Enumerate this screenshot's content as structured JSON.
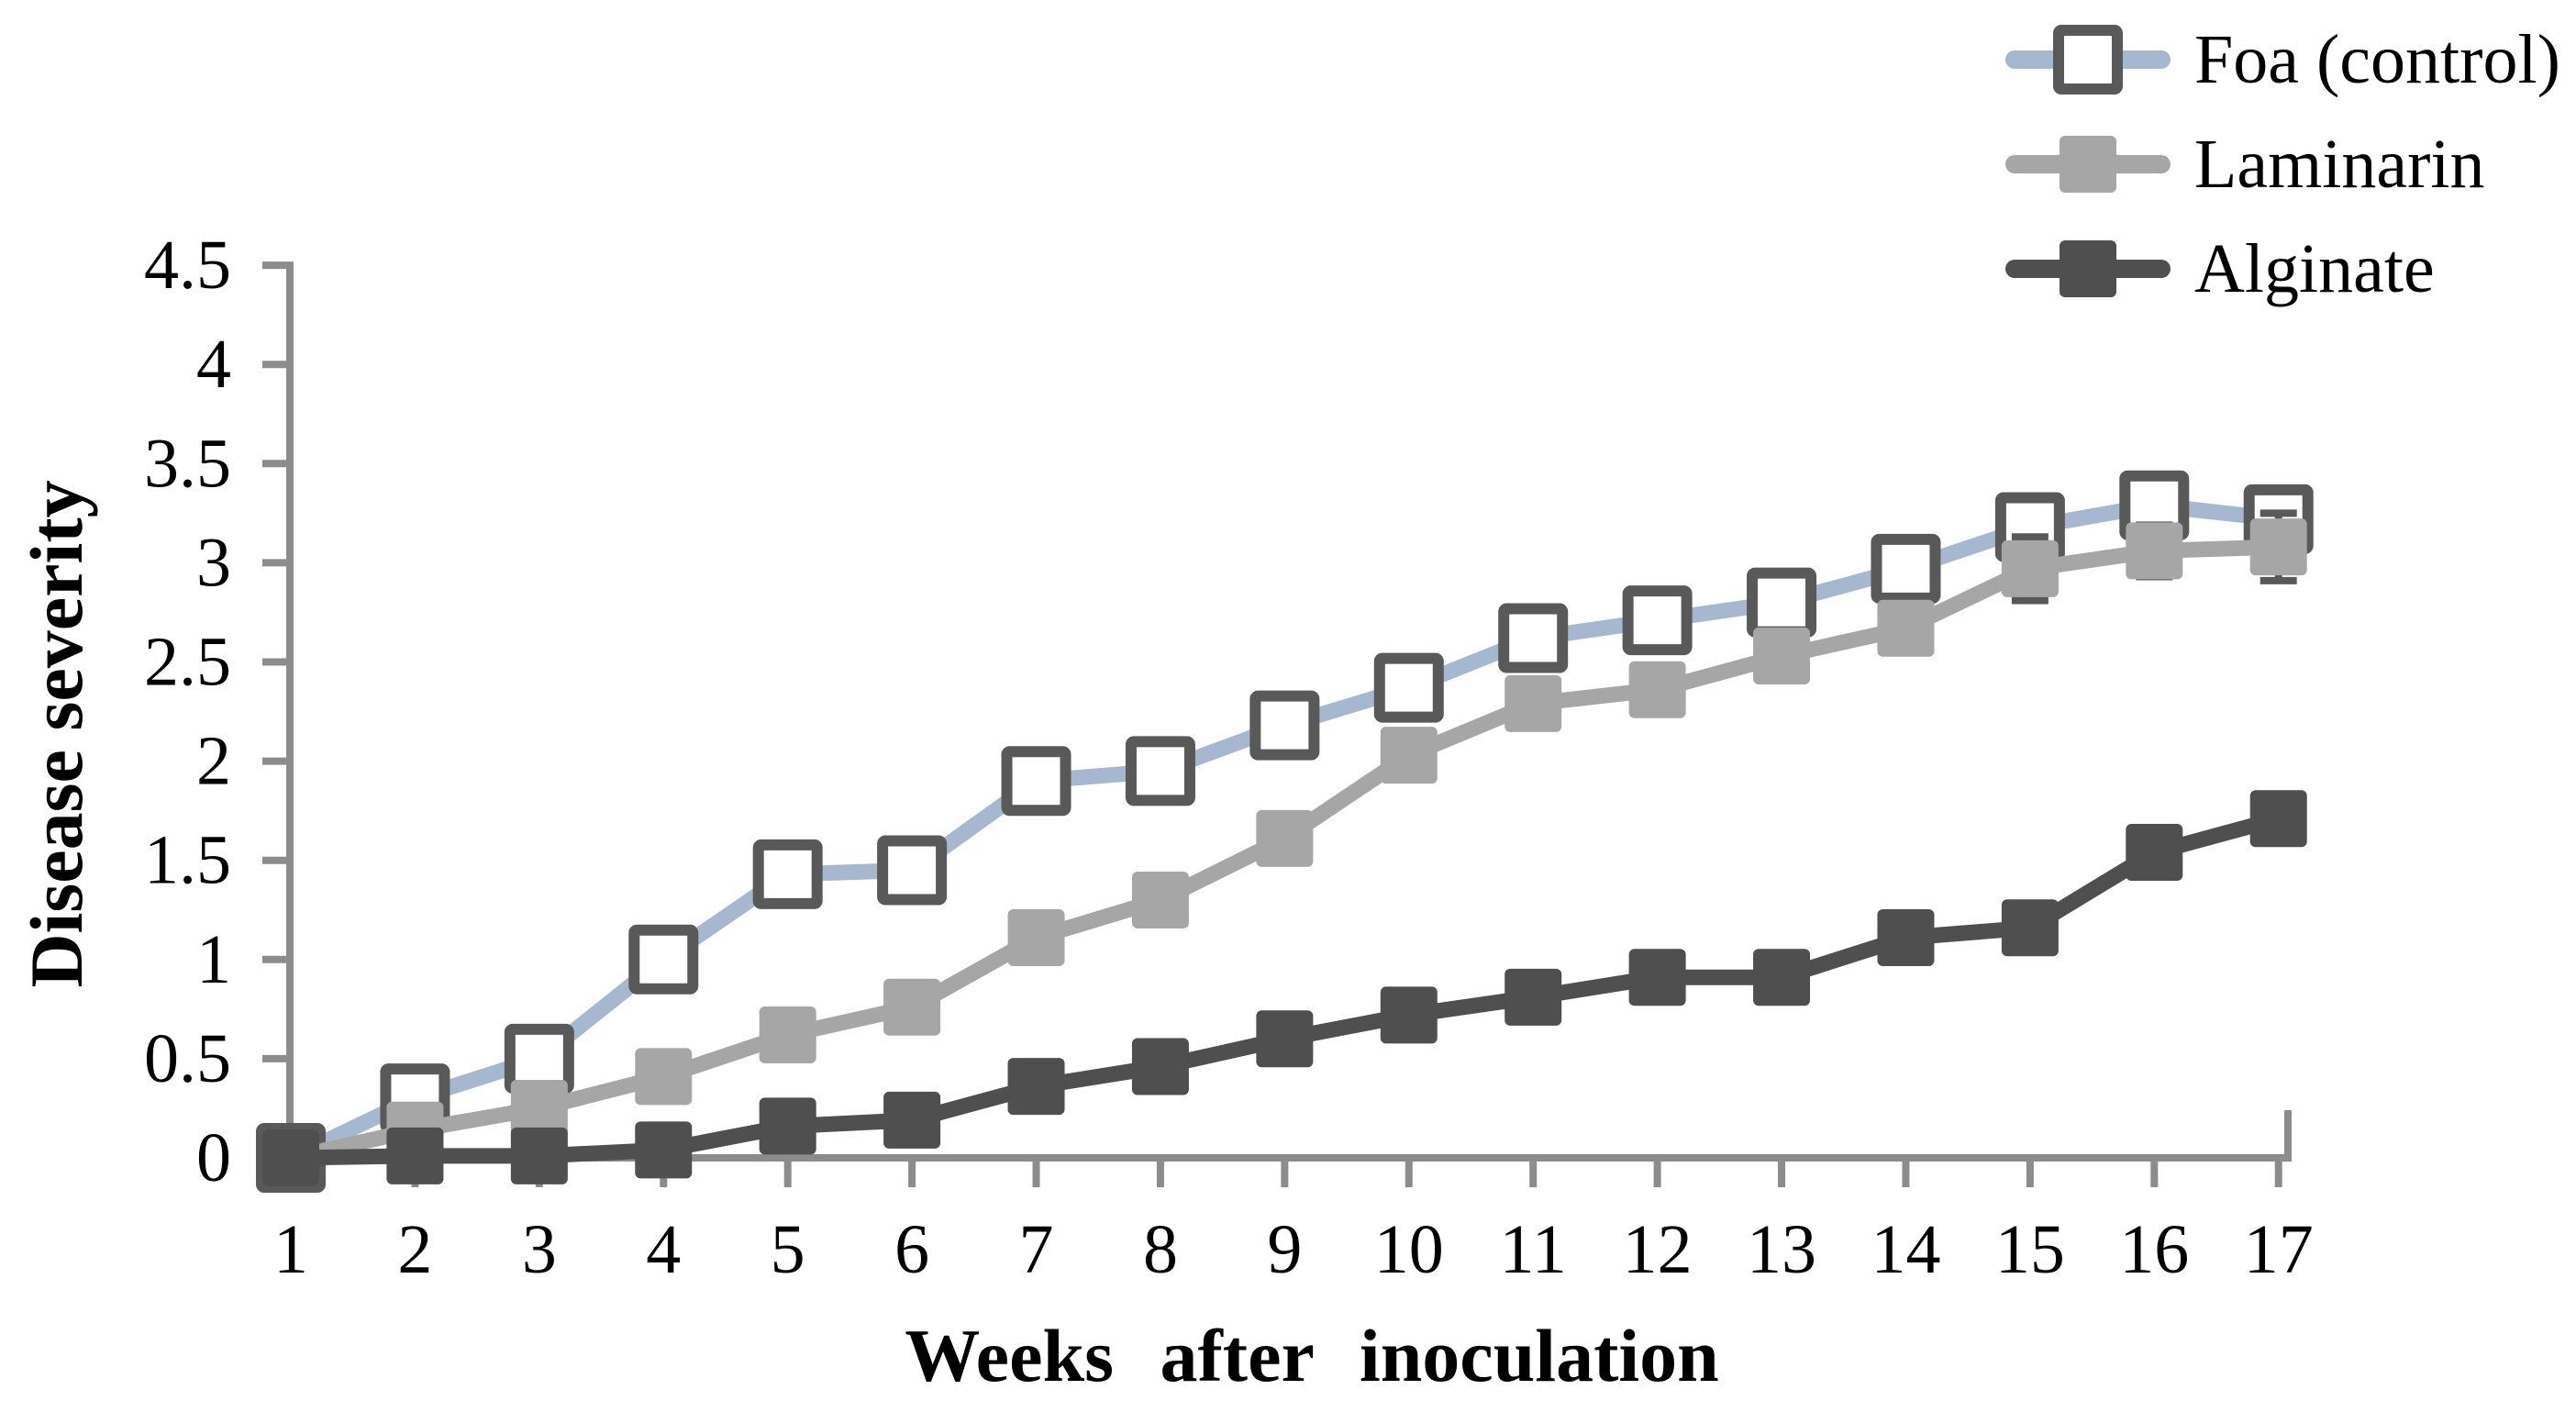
{
  "figure": {
    "background": "#ffffff",
    "y_axis_title": "Disease severity",
    "x_axis_title": "Weeks after inoculation"
  },
  "chart_data": {
    "type": "line",
    "title": "",
    "xlabel": "Weeks after inoculation",
    "ylabel": "Disease severity",
    "x": [
      1,
      2,
      3,
      4,
      5,
      6,
      7,
      8,
      9,
      10,
      11,
      12,
      13,
      14,
      15,
      16,
      17
    ],
    "x_ticklabels": [
      "1",
      "2",
      "3",
      "4",
      "5",
      "6",
      "7",
      "8",
      "9",
      "10",
      "11",
      "12",
      "13",
      "14",
      "15",
      "16",
      "17"
    ],
    "y_ticks": [
      0,
      0.5,
      1,
      1.5,
      2,
      2.5,
      3,
      3.5,
      4,
      4.5
    ],
    "y_ticklabels": [
      "0",
      "0.5",
      "1",
      "1.5",
      "2",
      "2.5",
      "3",
      "3.5",
      "4",
      "4.5"
    ],
    "ylim": [
      0,
      4.5
    ],
    "grid": false,
    "legend_position": "top-right",
    "axis_color": "#8c8c8c",
    "error_bar_color": "#595959",
    "text_color": "#000000",
    "series": [
      {
        "name": "Foa (control)",
        "color": "#a6b8cf",
        "marker": "open-square",
        "marker_fill": "#ffffff",
        "marker_border": "#595959",
        "values": [
          0,
          0.3,
          0.5,
          1.0,
          1.43,
          1.45,
          1.9,
          1.95,
          2.18,
          2.37,
          2.62,
          2.71,
          2.8,
          2.97,
          3.18,
          3.29,
          3.22
        ],
        "errors": [
          0,
          0,
          0,
          0,
          0,
          0,
          0,
          0,
          0,
          0,
          0,
          0,
          0.08,
          0.12,
          0.08,
          0.12,
          0.07
        ]
      },
      {
        "name": "Laminarin",
        "color": "#a6a6a6",
        "marker": "filled-square",
        "marker_fill": "#a6a6a6",
        "marker_border": "#a6a6a6",
        "values": [
          0,
          0.14,
          0.25,
          0.41,
          0.62,
          0.76,
          1.11,
          1.3,
          1.61,
          2.03,
          2.29,
          2.36,
          2.53,
          2.67,
          2.97,
          3.06,
          3.08
        ],
        "errors": [
          0,
          0,
          0,
          0,
          0,
          0,
          0,
          0,
          0,
          0,
          0,
          0,
          0,
          0,
          0.16,
          0.13,
          0.17
        ]
      },
      {
        "name": "Alginate",
        "color": "#4f4f4f",
        "marker": "filled-square",
        "marker_fill": "#4f4f4f",
        "marker_border": "#4f4f4f",
        "values": [
          0,
          0.01,
          0.01,
          0.04,
          0.16,
          0.19,
          0.36,
          0.46,
          0.6,
          0.72,
          0.81,
          0.91,
          0.91,
          1.11,
          1.16,
          1.54,
          1.71
        ],
        "errors": [
          0,
          0,
          0,
          0,
          0,
          0,
          0,
          0,
          0,
          0,
          0,
          0,
          0,
          0,
          0,
          0,
          0
        ]
      }
    ]
  }
}
